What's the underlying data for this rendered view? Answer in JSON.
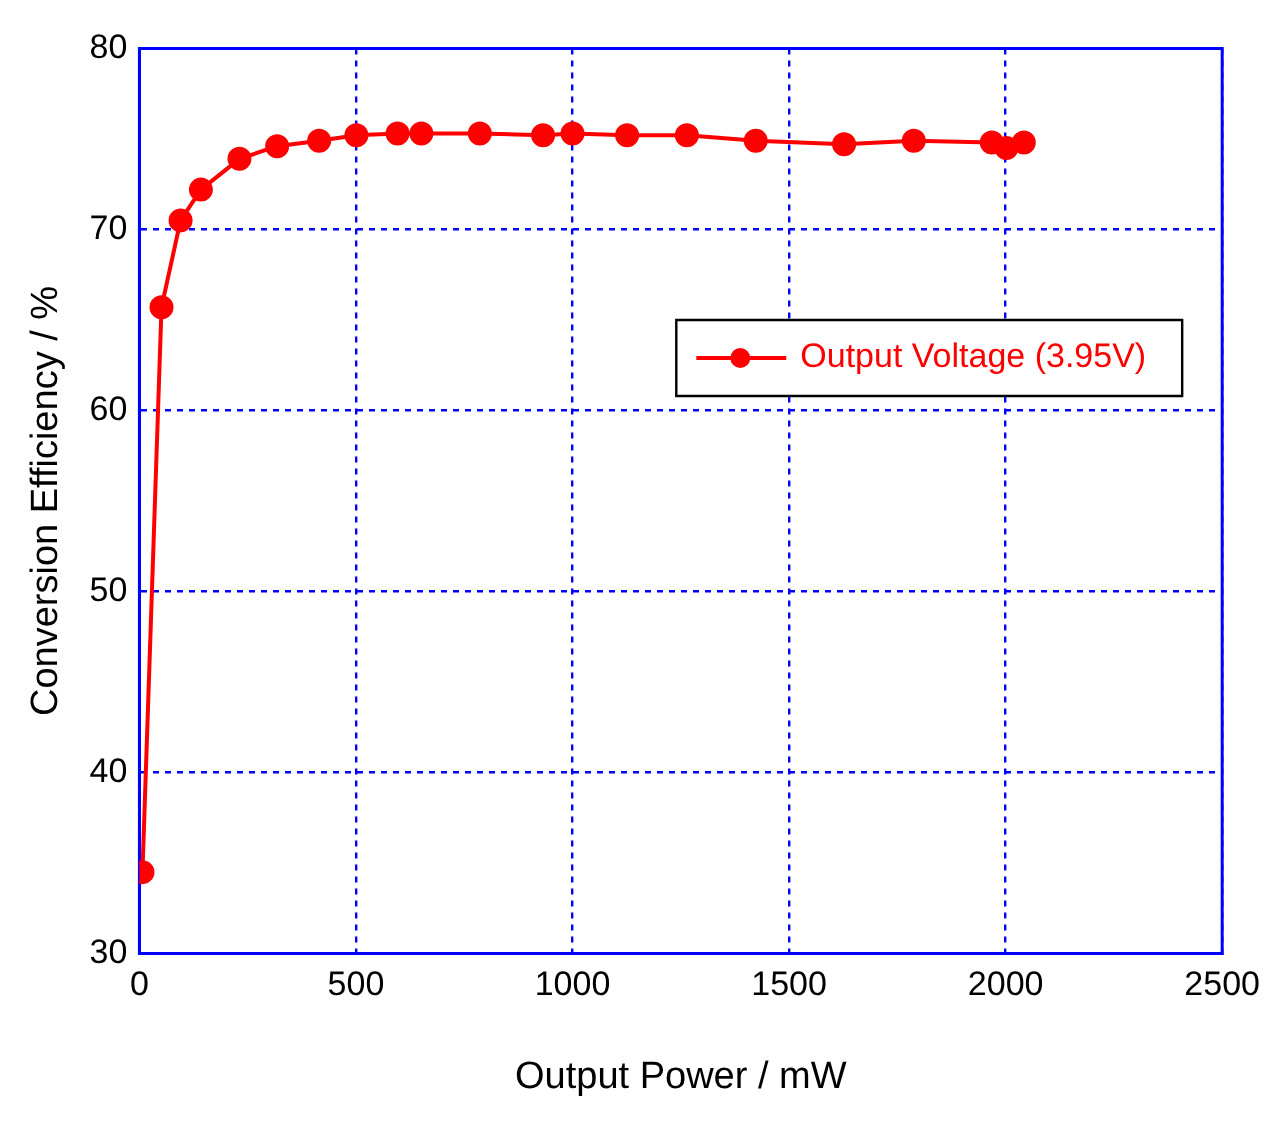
{
  "chart_data": {
    "type": "line",
    "xlabel": "Output Power / mW",
    "ylabel": "Conversion Efficiency / %",
    "xlim": [
      0,
      2500
    ],
    "xticks": [
      0,
      500,
      1000,
      1500,
      2000,
      2500
    ],
    "ylim": [
      30,
      80
    ],
    "yticks": [
      30,
      40,
      50,
      60,
      70,
      80
    ],
    "grid": true,
    "legend": "right",
    "marker": "circle",
    "line_style": "solid",
    "series": [
      {
        "name": "Output Voltage (3.95V)",
        "color": "#ff0000",
        "x": [
          7,
          51,
          95,
          142,
          231,
          318,
          415,
          501,
          596,
          651,
          786,
          932,
          1000,
          1126,
          1264,
          1423,
          1627,
          1788,
          1968,
          2002,
          2042
        ],
        "values": [
          34.5,
          65.7,
          70.5,
          72.2,
          73.9,
          74.6,
          74.9,
          75.2,
          75.3,
          75.3,
          75.3,
          75.2,
          75.3,
          75.2,
          75.2,
          74.9,
          74.7,
          74.9,
          74.8,
          74.5,
          74.8
        ]
      }
    ]
  }
}
